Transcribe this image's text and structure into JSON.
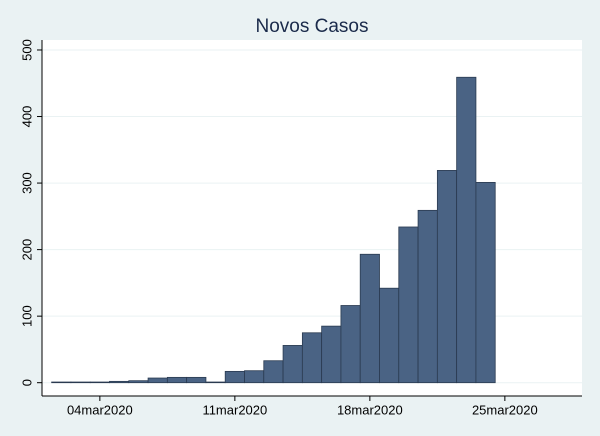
{
  "chart_data": {
    "type": "bar",
    "title": "Novos Casos",
    "x": [
      "2020-03-02",
      "2020-03-03",
      "2020-03-04",
      "2020-03-05",
      "2020-03-06",
      "2020-03-07",
      "2020-03-08",
      "2020-03-09",
      "2020-03-10",
      "2020-03-11",
      "2020-03-12",
      "2020-03-13",
      "2020-03-14",
      "2020-03-15",
      "2020-03-16",
      "2020-03-17",
      "2020-03-18",
      "2020-03-19",
      "2020-03-20",
      "2020-03-21",
      "2020-03-22",
      "2020-03-23",
      "2020-03-24"
    ],
    "values": [
      1,
      1,
      1,
      2,
      3,
      7,
      8,
      8,
      1,
      17,
      18,
      33,
      56,
      75,
      85,
      116,
      193,
      142,
      234,
      259,
      319,
      459,
      301
    ],
    "color": "#4a6384",
    "xlim": [
      "2020-03-01",
      "2020-03-29"
    ],
    "xticks": [
      {
        "value": "2020-03-04",
        "label": "04mar2020"
      },
      {
        "value": "2020-03-11",
        "label": "11mar2020"
      },
      {
        "value": "2020-03-18",
        "label": "18mar2020"
      },
      {
        "value": "2020-03-25",
        "label": "25mar2020"
      }
    ],
    "ylim": [
      -20,
      515
    ],
    "yticks": [
      0,
      100,
      200,
      300,
      400,
      500
    ],
    "grid": true
  }
}
